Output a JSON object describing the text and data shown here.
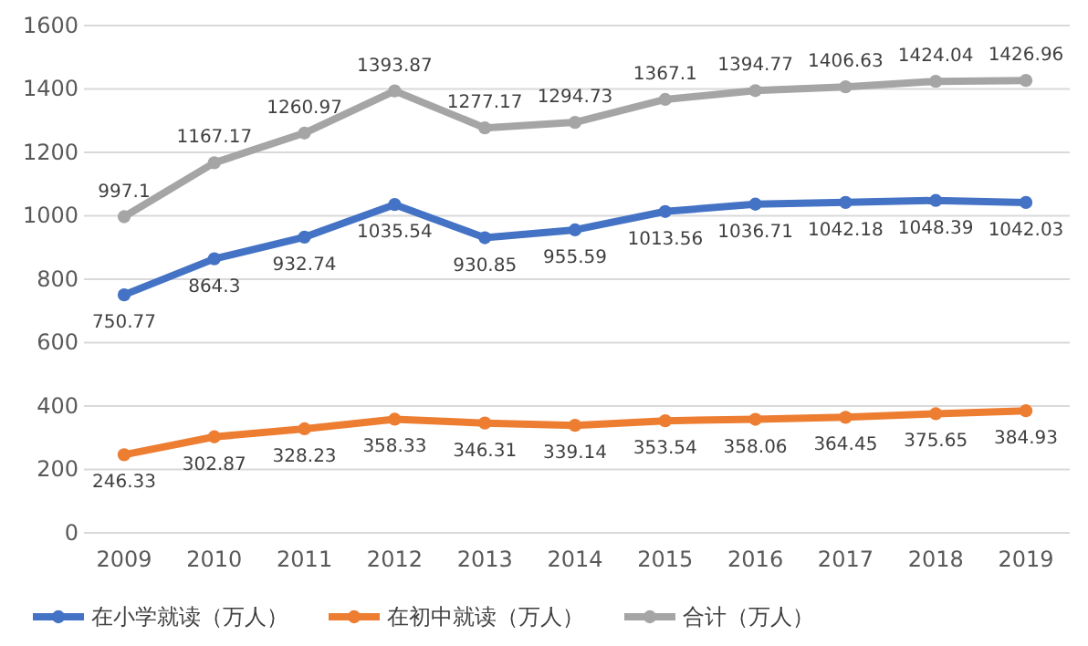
{
  "chart_data": {
    "type": "line",
    "categories": [
      "2009",
      "2010",
      "2011",
      "2012",
      "2013",
      "2014",
      "2015",
      "2016",
      "2017",
      "2018",
      "2019"
    ],
    "series": [
      {
        "name": "在小学就读（万人）",
        "color": "#4472c4",
        "values": [
          750.77,
          864.3,
          932.74,
          1035.54,
          930.85,
          955.59,
          1013.56,
          1036.71,
          1042.18,
          1048.39,
          1042.03
        ]
      },
      {
        "name": "在初中就读（万人）",
        "color": "#ed7d31",
        "values": [
          246.33,
          302.87,
          328.23,
          358.33,
          346.31,
          339.14,
          353.54,
          358.06,
          364.45,
          375.65,
          384.93
        ]
      },
      {
        "name": "合计（万人）",
        "color": "#a5a5a5",
        "values": [
          997.1,
          1167.17,
          1260.97,
          1393.87,
          1277.17,
          1294.73,
          1367.1,
          1394.77,
          1406.63,
          1424.04,
          1426.96
        ]
      }
    ],
    "ylim": [
      0,
      1600
    ],
    "yticks": [
      0,
      200,
      400,
      600,
      800,
      1000,
      1200,
      1400,
      1600
    ],
    "grid": "y",
    "legend": "bottom",
    "marker": "circle",
    "line_style": "solid",
    "data_labels": true
  }
}
